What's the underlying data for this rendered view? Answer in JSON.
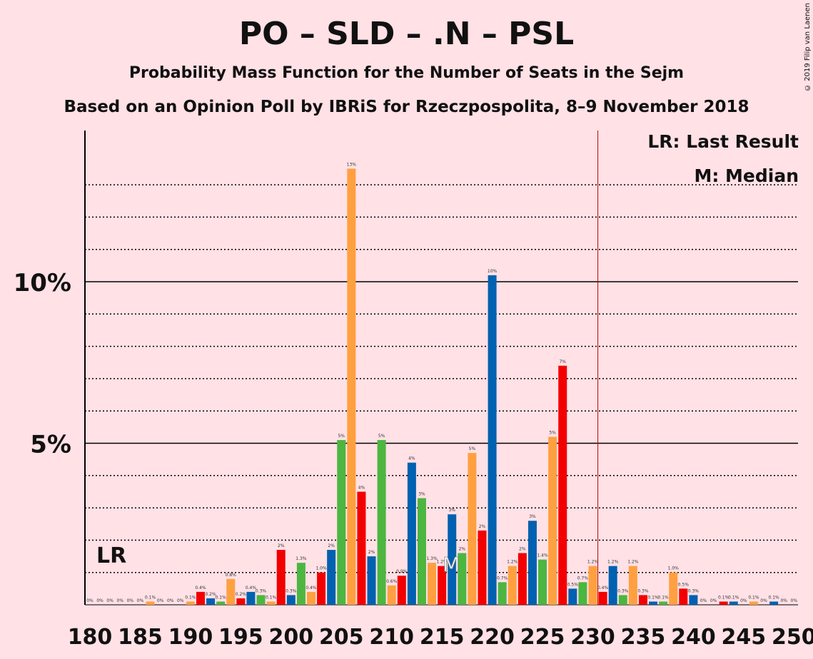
{
  "title": "PO – SLD – .N – PSL",
  "subtitle": "Probability Mass Function for the Number of Seats in the Sejm",
  "subtitle2": "Based on an Opinion Poll by IBRiS for Rzeczpospolita, 8–9 November 2018",
  "copyright": "© 2019 Filip van Laenen",
  "legend": {
    "lr": "LR: Last Result",
    "median": "M: Median"
  },
  "chart_data": {
    "type": "bar",
    "xlim": [
      180,
      250
    ],
    "ylim": [
      0,
      14.6
    ],
    "x_ticks": [
      "180",
      "185",
      "190",
      "195",
      "200",
      "205",
      "210",
      "215",
      "220",
      "225",
      "230",
      "235",
      "240",
      "245",
      "250"
    ],
    "y_ticks": [
      {
        "value": 5,
        "label": "5%"
      },
      {
        "value": 10,
        "label": "10%"
      }
    ],
    "minor_gridlines": [
      1,
      2,
      3,
      4,
      6,
      7,
      8,
      9,
      11,
      12,
      13
    ],
    "majority_line": 231,
    "last_result": {
      "x": 180,
      "label": "LR"
    },
    "median": {
      "x": 216,
      "label": "M"
    },
    "colors": [
      "#0061B0",
      "#4CB640",
      "#FFA040",
      "#F20000"
    ],
    "bars": [
      {
        "x": 180,
        "value": 0,
        "label": "0%"
      },
      {
        "x": 181,
        "value": 0,
        "label": "0%"
      },
      {
        "x": 182,
        "value": 0,
        "label": "0%"
      },
      {
        "x": 183,
        "value": 0,
        "label": "0%"
      },
      {
        "x": 184,
        "value": 0,
        "label": "0%"
      },
      {
        "x": 185,
        "value": 0,
        "label": "0%"
      },
      {
        "x": 186,
        "value": 0.1,
        "label": "0.1%"
      },
      {
        "x": 187,
        "value": 0,
        "label": "0%"
      },
      {
        "x": 188,
        "value": 0,
        "label": "0%"
      },
      {
        "x": 189,
        "value": 0,
        "label": "0%"
      },
      {
        "x": 190,
        "value": 0.1,
        "label": "0.1%"
      },
      {
        "x": 191,
        "value": 0.4,
        "label": "0.4%"
      },
      {
        "x": 192,
        "value": 0.2,
        "label": "0.2%"
      },
      {
        "x": 193,
        "value": 0.1,
        "label": "0.1%"
      },
      {
        "x": 194,
        "value": 0.8,
        "label": "0.8%"
      },
      {
        "x": 195,
        "value": 0.2,
        "label": "0.2%"
      },
      {
        "x": 196,
        "value": 0.4,
        "label": "0.4%"
      },
      {
        "x": 197,
        "value": 0.3,
        "label": "0.3%"
      },
      {
        "x": 198,
        "value": 0.1,
        "label": "0.1%"
      },
      {
        "x": 199,
        "value": 1.7,
        "label": "2%"
      },
      {
        "x": 200,
        "value": 0.3,
        "label": "0.3%"
      },
      {
        "x": 201,
        "value": 1.3,
        "label": "1.3%"
      },
      {
        "x": 202,
        "value": 0.4,
        "label": "0.4%"
      },
      {
        "x": 203,
        "value": 1.0,
        "label": "1.0%"
      },
      {
        "x": 204,
        "value": 1.7,
        "label": "2%"
      },
      {
        "x": 205,
        "value": 5.1,
        "label": "5%"
      },
      {
        "x": 206,
        "value": 13.5,
        "label": "13%"
      },
      {
        "x": 207,
        "value": 3.5,
        "label": "4%"
      },
      {
        "x": 208,
        "value": 1.5,
        "label": "2%"
      },
      {
        "x": 209,
        "value": 5.1,
        "label": "5%"
      },
      {
        "x": 210,
        "value": 0.6,
        "label": "0.6%"
      },
      {
        "x": 211,
        "value": 0.9,
        "label": "0.9%"
      },
      {
        "x": 212,
        "value": 4.4,
        "label": "4%"
      },
      {
        "x": 213,
        "value": 3.3,
        "label": "3%"
      },
      {
        "x": 214,
        "value": 1.3,
        "label": "1.3%"
      },
      {
        "x": 215,
        "value": 1.2,
        "label": "1.2%"
      },
      {
        "x": 216,
        "value": 2.8,
        "label": "3%"
      },
      {
        "x": 217,
        "value": 1.6,
        "label": "2%"
      },
      {
        "x": 218,
        "value": 4.7,
        "label": "5%"
      },
      {
        "x": 219,
        "value": 2.3,
        "label": "2%"
      },
      {
        "x": 220,
        "value": 10.2,
        "label": "10%"
      },
      {
        "x": 221,
        "value": 0.7,
        "label": "0.7%"
      },
      {
        "x": 222,
        "value": 1.2,
        "label": "1.2%"
      },
      {
        "x": 223,
        "value": 1.6,
        "label": "2%"
      },
      {
        "x": 224,
        "value": 2.6,
        "label": "3%"
      },
      {
        "x": 225,
        "value": 1.4,
        "label": "1.4%"
      },
      {
        "x": 226,
        "value": 5.2,
        "label": "5%"
      },
      {
        "x": 227,
        "value": 7.4,
        "label": "7%"
      },
      {
        "x": 228,
        "value": 0.5,
        "label": "0.5%"
      },
      {
        "x": 229,
        "value": 0.7,
        "label": "0.7%"
      },
      {
        "x": 230,
        "value": 1.2,
        "label": "1.2%"
      },
      {
        "x": 231,
        "value": 0.4,
        "label": "0.4%"
      },
      {
        "x": 232,
        "value": 1.2,
        "label": "1.2%"
      },
      {
        "x": 233,
        "value": 0.3,
        "label": "0.3%"
      },
      {
        "x": 234,
        "value": 1.2,
        "label": "1.2%"
      },
      {
        "x": 235,
        "value": 0.3,
        "label": "0.3%"
      },
      {
        "x": 236,
        "value": 0.1,
        "label": "0.1%"
      },
      {
        "x": 237,
        "value": 0.1,
        "label": "0.1%"
      },
      {
        "x": 238,
        "value": 1.0,
        "label": "1.0%"
      },
      {
        "x": 239,
        "value": 0.5,
        "label": "0.5%"
      },
      {
        "x": 240,
        "value": 0.3,
        "label": "0.3%"
      },
      {
        "x": 241,
        "value": 0,
        "label": "0%"
      },
      {
        "x": 242,
        "value": 0,
        "label": "0%"
      },
      {
        "x": 243,
        "value": 0.1,
        "label": "0.1%"
      },
      {
        "x": 244,
        "value": 0.1,
        "label": "0.1%"
      },
      {
        "x": 245,
        "value": 0,
        "label": "0%"
      },
      {
        "x": 246,
        "value": 0.1,
        "label": "0.1%"
      },
      {
        "x": 247,
        "value": 0,
        "label": "0%"
      },
      {
        "x": 248,
        "value": 0.1,
        "label": "0.1%"
      },
      {
        "x": 249,
        "value": 0,
        "label": "0%"
      },
      {
        "x": 250,
        "value": 0,
        "label": "0%"
      }
    ]
  }
}
